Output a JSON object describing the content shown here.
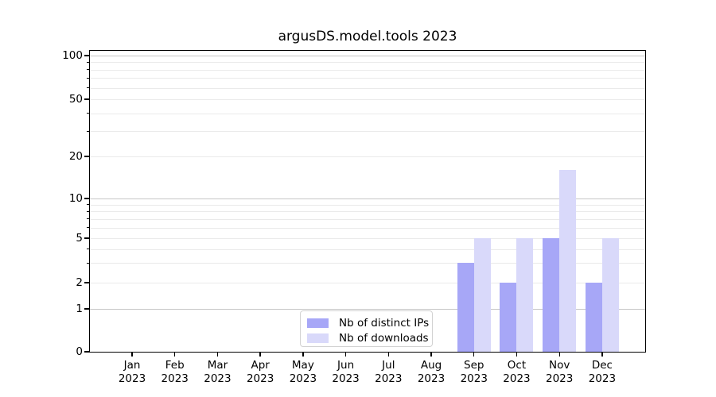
{
  "chart_data": {
    "type": "bar",
    "title": "argusDS.model.tools 2023",
    "year": "2023",
    "categories": [
      "Jan",
      "Feb",
      "Mar",
      "Apr",
      "May",
      "Jun",
      "Jul",
      "Aug",
      "Sep",
      "Oct",
      "Nov",
      "Dec"
    ],
    "series": [
      {
        "name": "Nb of distinct IPs",
        "color": "#a7a7f7",
        "values": [
          0,
          0,
          0,
          0,
          0,
          0,
          0,
          0,
          3,
          2,
          5,
          2
        ]
      },
      {
        "name": "Nb of downloads",
        "color": "#d9d9fa",
        "values": [
          0,
          0,
          0,
          0,
          0,
          0,
          0,
          0,
          5,
          5,
          16,
          5
        ]
      }
    ],
    "yscale": "log above 1, linear 0 to 1",
    "ylim": [
      0,
      108
    ],
    "y_labeled_ticks": [
      0,
      1,
      2,
      5,
      10,
      20,
      50,
      100
    ],
    "y_major_gridlines": [
      1,
      10,
      100
    ],
    "y_minor_gridlines": [
      2,
      3,
      4,
      5,
      6,
      7,
      8,
      9,
      20,
      30,
      40,
      50,
      60,
      70,
      80,
      90
    ],
    "major_grid_color": "#c6c6c6",
    "minor_grid_color": "#eaeaea",
    "grid": "horizontal",
    "legend_position": "lower center"
  }
}
